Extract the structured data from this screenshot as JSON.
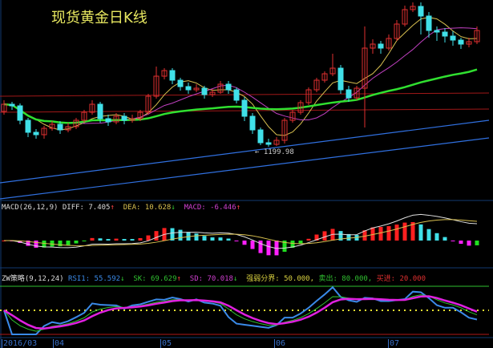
{
  "title": "现货黄金日K线",
  "colors": {
    "up": "#e03030",
    "down": "#40e0e8",
    "ma1": "#d8c050",
    "ma2": "#c040c0",
    "ma3": "#30e030",
    "channel": "#3070e0",
    "band": "#a01818"
  },
  "chart_data": {
    "type": "candlestick",
    "title": "现货黄金日K线",
    "low_label": "1199.98",
    "candles": [
      [
        1222,
        1229,
        1220,
        1226.5
      ],
      [
        1226.5,
        1228,
        1223,
        1225.5
      ],
      [
        1225.5,
        1227,
        1214,
        1216.5
      ],
      [
        1216.5,
        1218,
        1206,
        1209
      ],
      [
        1209,
        1211,
        1205,
        1207.5
      ],
      [
        1207.5,
        1213,
        1205,
        1211.5
      ],
      [
        1211.5,
        1216,
        1210,
        1214
      ],
      [
        1214,
        1216,
        1208,
        1210.5
      ],
      [
        1210.5,
        1215,
        1209,
        1212.5
      ],
      [
        1212.5,
        1218,
        1211,
        1216.5
      ],
      [
        1216.5,
        1223,
        1215,
        1221.5
      ],
      [
        1221.5,
        1229,
        1220,
        1226.5
      ],
      [
        1226.5,
        1228,
        1215,
        1217.5
      ],
      [
        1217.5,
        1220,
        1213,
        1215.5
      ],
      [
        1215.5,
        1221,
        1214,
        1219
      ],
      [
        1219,
        1221,
        1214,
        1216.5
      ],
      [
        1216.5,
        1220,
        1215,
        1217.5
      ],
      [
        1217.5,
        1223,
        1216,
        1221.5
      ],
      [
        1221.5,
        1233,
        1220,
        1231.5
      ],
      [
        1231.5,
        1250,
        1230,
        1244
      ],
      [
        1244,
        1249,
        1242,
        1247.5
      ],
      [
        1247.5,
        1249,
        1239,
        1241.5
      ],
      [
        1241.5,
        1243,
        1235,
        1237.5
      ],
      [
        1237.5,
        1240,
        1233,
        1235.5
      ],
      [
        1235.5,
        1239,
        1234,
        1236.5
      ],
      [
        1236.5,
        1238,
        1230,
        1232.5
      ],
      [
        1232.5,
        1236,
        1231,
        1234
      ],
      [
        1234,
        1241,
        1233,
        1239
      ],
      [
        1239,
        1241,
        1233,
        1235.5
      ],
      [
        1235.5,
        1237,
        1227,
        1229
      ],
      [
        1229,
        1231,
        1216,
        1219
      ],
      [
        1219,
        1221,
        1208,
        1210.5
      ],
      [
        1210.5,
        1212,
        1201,
        1202.5
      ],
      [
        1202.5,
        1205,
        1199.98,
        1201.5
      ],
      [
        1201.5,
        1206,
        1200.5,
        1204
      ],
      [
        1204,
        1218,
        1202,
        1216.5
      ],
      [
        1216.5,
        1223,
        1215,
        1221.5
      ],
      [
        1221.5,
        1229,
        1220,
        1227.5
      ],
      [
        1227.5,
        1237,
        1226,
        1235.5
      ],
      [
        1235.5,
        1243,
        1234,
        1241.5
      ],
      [
        1241.5,
        1247,
        1240,
        1245.5
      ],
      [
        1245.5,
        1258,
        1244,
        1249
      ],
      [
        1249,
        1251,
        1233,
        1235.5
      ],
      [
        1235.5,
        1238,
        1228,
        1230.5
      ],
      [
        1230.5,
        1238,
        1229,
        1236.5
      ],
      [
        1236.5,
        1275,
        1212,
        1261.5
      ],
      [
        1261.5,
        1267,
        1258,
        1264
      ],
      [
        1264,
        1266,
        1258,
        1261.5
      ],
      [
        1261.5,
        1270,
        1260,
        1267.5
      ],
      [
        1267.5,
        1279,
        1266,
        1276.5
      ],
      [
        1276.5,
        1288,
        1275,
        1285.5
      ],
      [
        1285.5,
        1290,
        1284,
        1287.5
      ],
      [
        1287.5,
        1290,
        1270,
        1281.5
      ],
      [
        1281.5,
        1284,
        1268,
        1272.5
      ],
      [
        1272.5,
        1275,
        1266,
        1271.5
      ],
      [
        1271.5,
        1274,
        1265,
        1269
      ],
      [
        1269,
        1272,
        1263,
        1266.5
      ],
      [
        1266.5,
        1268,
        1261,
        1264
      ],
      [
        1264,
        1268,
        1262,
        1265.5
      ],
      [
        1265.5,
        1275,
        1264,
        1272.5
      ]
    ],
    "x_ticks": [
      "2016/03",
      "04",
      "05",
      "06",
      "07"
    ]
  },
  "macd": {
    "name": "MACD(26,12,9)",
    "diff_label": "DIFF: 7.405",
    "diff_arrow": "↑",
    "dea_label": "DEA: 10.628",
    "dea_arrow": "↓",
    "macd_label": "MACD: -6.446",
    "macd_arrow": "↑"
  },
  "zw": {
    "name": "ZW策略(9,12,24)",
    "rsi_label": "RSI1: 55.592",
    "rsi_arrow": "↓",
    "sk_label": "SK: 69.629",
    "sk_arrow": "↑",
    "sd_label": "SD: 70.018",
    "sd_arrow": "↓",
    "mid_label": "强弱分界: 50.000,",
    "sell_label": "卖出: 80.000,",
    "buy_label": "买进: 20.000",
    "levels": {
      "sell": 80,
      "mid": 50,
      "buy": 20
    }
  }
}
